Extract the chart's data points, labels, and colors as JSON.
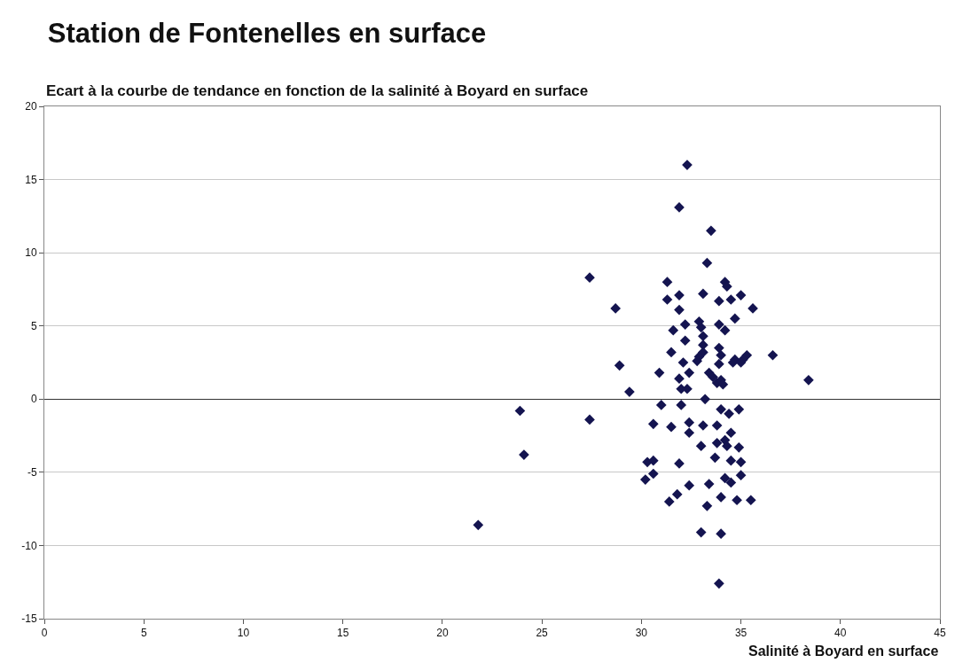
{
  "chart_data": {
    "type": "scatter",
    "title": "Station de Fontenelles en surface",
    "subtitle": "Ecart à la courbe de tendance en fonction de la salinité à Boyard en surface",
    "xlabel": "Salinité à Boyard en surface",
    "xlim": [
      0,
      45
    ],
    "xticks": [
      0,
      5,
      10,
      15,
      20,
      25,
      30,
      35,
      40,
      45
    ],
    "ylim": [
      -15,
      20
    ],
    "yticks": [
      -15,
      -10,
      -5,
      0,
      5,
      10,
      15,
      20
    ],
    "grid": "y",
    "marker": "diamond",
    "series": [
      {
        "color": "#141450",
        "x": [
          32.3,
          31.9,
          33.5,
          33.3,
          27.4,
          31.3,
          34.2,
          34.3,
          28.7,
          31.3,
          31.9,
          33.1,
          33.9,
          34.5,
          35.0,
          35.6,
          31.9,
          34.7,
          32.2,
          31.6,
          32.9,
          33.0,
          33.9,
          34.2,
          32.2,
          33.1,
          31.5,
          33.1,
          33.1,
          33.9,
          34.0,
          35.3,
          35.1,
          36.6,
          32.9,
          32.8,
          32.1,
          34.7,
          34.6,
          35.0,
          33.9,
          28.9,
          32.4,
          30.9,
          33.4,
          33.6,
          31.9,
          33.8,
          34.0,
          34.1,
          38.4,
          29.4,
          32.0,
          32.3,
          33.2,
          31.0,
          32.0,
          23.9,
          34.0,
          34.9,
          34.4,
          27.4,
          30.6,
          31.5,
          32.4,
          33.1,
          33.8,
          32.4,
          34.5,
          33.0,
          33.8,
          34.2,
          34.3,
          34.9,
          33.7,
          34.5,
          35.0,
          30.3,
          30.6,
          31.9,
          30.2,
          30.6,
          32.4,
          33.4,
          34.2,
          34.5,
          35.0,
          31.8,
          31.4,
          34.0,
          34.8,
          35.5,
          33.3,
          33.0,
          34.0,
          33.9,
          24.1,
          21.8
        ],
        "values": [
          16.0,
          13.1,
          11.5,
          9.3,
          8.3,
          8.0,
          8.0,
          7.7,
          6.2,
          6.8,
          7.1,
          7.2,
          6.7,
          6.8,
          7.1,
          6.2,
          6.1,
          5.5,
          5.1,
          4.7,
          5.3,
          4.9,
          5.1,
          4.7,
          4.0,
          4.3,
          3.2,
          3.7,
          3.2,
          3.5,
          3.0,
          3.0,
          2.7,
          3.0,
          2.9,
          2.6,
          2.5,
          2.7,
          2.5,
          2.5,
          2.4,
          2.3,
          1.8,
          1.8,
          1.8,
          1.5,
          1.4,
          1.1,
          1.3,
          1.0,
          1.3,
          0.5,
          0.7,
          0.7,
          0.0,
          -0.4,
          -0.4,
          -0.8,
          -0.7,
          -0.7,
          -1.0,
          -1.4,
          -1.7,
          -1.9,
          -1.6,
          -1.8,
          -1.8,
          -2.3,
          -2.3,
          -3.2,
          -3.0,
          -2.8,
          -3.2,
          -3.3,
          -4.0,
          -4.2,
          -4.3,
          -4.3,
          -4.2,
          -4.4,
          -5.5,
          -5.1,
          -5.9,
          -5.8,
          -5.4,
          -5.7,
          -5.2,
          -6.5,
          -7.0,
          -6.7,
          -6.9,
          -6.9,
          -7.3,
          -9.1,
          -9.2,
          -12.6,
          -3.8,
          -8.6
        ]
      }
    ]
  }
}
